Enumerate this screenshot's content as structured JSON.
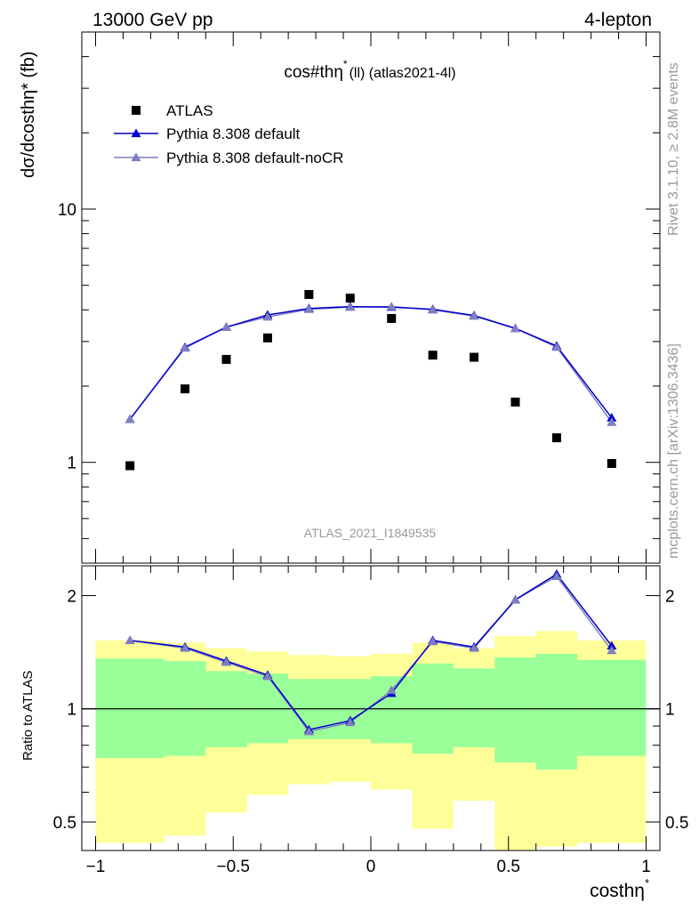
{
  "header": {
    "left": "13000 GeV pp",
    "right": "4-lepton"
  },
  "side_labels": {
    "rivet": "Rivet 3.1.10, ≥ 2.8M events",
    "source": "mcplots.cern.ch [arXiv:1306.3436]"
  },
  "watermark": "ATLAS_2021_I1849535",
  "colors": {
    "data": "#000000",
    "default": "#0000cc",
    "nocr": "#7f7fbf",
    "band_outer": "#ffff99",
    "band_inner": "#99ff99"
  },
  "chart_data": [
    {
      "type": "scatter",
      "title": "cos#thη* (ll) (atlas2021-4l)",
      "title_main": "cos#thη",
      "title_sup": "*",
      "title_rest": "(ll) (atlas2021-4l)",
      "ylabel": "dσ/dcosthη* (fb)",
      "yscale": "log",
      "ylim": [
        0.4,
        50
      ],
      "xlim": [
        -1.05,
        1.05
      ],
      "y_tick_labels": [
        "1",
        "10"
      ],
      "legend_position": "top-left",
      "x": [
        -0.875,
        -0.675,
        -0.525,
        -0.375,
        -0.225,
        -0.075,
        0.075,
        0.225,
        0.375,
        0.525,
        0.675,
        0.875
      ],
      "series": [
        {
          "name": "ATLAS",
          "marker": "square",
          "values": [
            0.97,
            1.95,
            2.55,
            3.1,
            4.6,
            4.45,
            3.7,
            2.65,
            2.6,
            1.73,
            1.25,
            0.99
          ]
        },
        {
          "name": "Pythia 8.308 default",
          "marker": "triangle",
          "values": [
            1.48,
            2.85,
            3.42,
            3.82,
            4.05,
            4.12,
            4.1,
            4.02,
            3.8,
            3.38,
            2.88,
            1.5
          ]
        },
        {
          "name": "Pythia 8.308 default-noCR",
          "marker": "triangle",
          "values": [
            1.48,
            2.83,
            3.42,
            3.75,
            4.02,
            4.1,
            4.12,
            4.0,
            3.78,
            3.38,
            2.85,
            1.44
          ]
        }
      ]
    },
    {
      "type": "line",
      "ylabel": "Ratio to ATLAS",
      "xlabel": "costhη*",
      "xlabel_main": "costhη",
      "xlabel_sup": "*",
      "yscale": "log",
      "ylim": [
        0.42,
        2.4
      ],
      "xlim": [
        -1.05,
        1.05
      ],
      "x_tick_labels": [
        "−1",
        "−0.5",
        "0",
        "0.5",
        "1"
      ],
      "x_ticks": [
        -1,
        -0.5,
        0,
        0.5,
        1
      ],
      "y_tick_labels": [
        "0.5",
        "1",
        "2"
      ],
      "y_ticks": [
        0.5,
        1,
        2
      ],
      "reference_line": 1,
      "bin_edges": [
        -1,
        -0.75,
        -0.6,
        -0.45,
        -0.3,
        -0.15,
        0,
        0.15,
        0.3,
        0.45,
        0.6,
        0.75,
        1
      ],
      "band_outer": {
        "lo": [
          0.44,
          0.46,
          0.53,
          0.59,
          0.63,
          0.64,
          0.61,
          0.48,
          0.57,
          0.42,
          0.43,
          0.44
        ],
        "hi": [
          1.52,
          1.5,
          1.45,
          1.42,
          1.39,
          1.38,
          1.4,
          1.5,
          1.45,
          1.56,
          1.61,
          1.52
        ]
      },
      "band_inner": {
        "lo": [
          0.74,
          0.75,
          0.79,
          0.81,
          0.83,
          0.83,
          0.81,
          0.76,
          0.79,
          0.72,
          0.69,
          0.75
        ],
        "hi": [
          1.36,
          1.34,
          1.26,
          1.24,
          1.2,
          1.2,
          1.22,
          1.32,
          1.28,
          1.37,
          1.4,
          1.35
        ]
      },
      "x": [
        -0.875,
        -0.675,
        -0.525,
        -0.375,
        -0.225,
        -0.075,
        0.075,
        0.225,
        0.375,
        0.525,
        0.675,
        0.875
      ],
      "series": [
        {
          "name": "Pythia 8.308 default",
          "values": [
            1.52,
            1.46,
            1.34,
            1.23,
            0.88,
            0.93,
            1.1,
            1.52,
            1.46,
            1.95,
            2.28,
            1.47
          ]
        },
        {
          "name": "Pythia 8.308 default-noCR",
          "values": [
            1.52,
            1.45,
            1.33,
            1.22,
            0.87,
            0.92,
            1.12,
            1.51,
            1.45,
            1.95,
            2.25,
            1.43
          ]
        }
      ]
    }
  ]
}
